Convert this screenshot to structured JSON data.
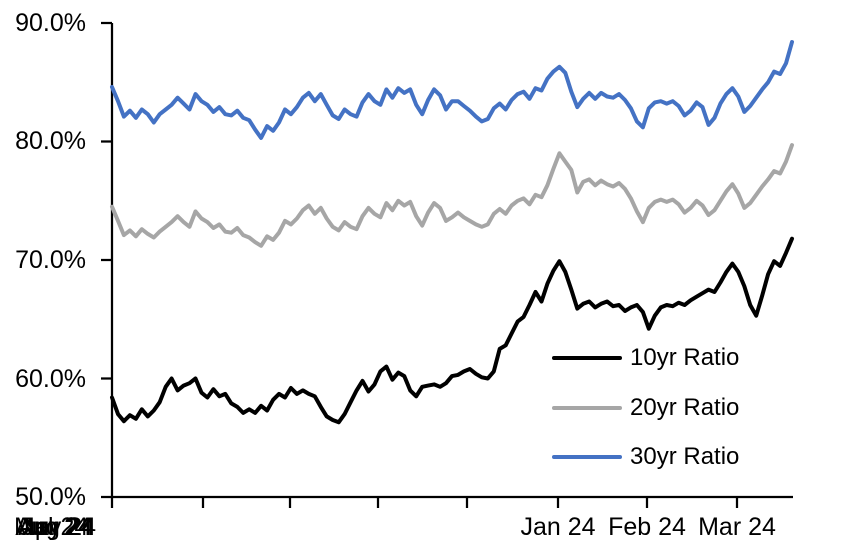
{
  "chart_data": {
    "type": "line",
    "title": "",
    "x_tick_labels": [
      "Jan 24",
      "Feb 24",
      "Mar 24",
      "Apr 24",
      "May 24",
      "Jun 24",
      "Jul 24",
      "Aug 24"
    ],
    "y_tick_labels": [
      "90.0%",
      "80.0%",
      "70.0%",
      "60.0%",
      "50.0%"
    ],
    "ylim": [
      50,
      90
    ],
    "y_unit": "%",
    "grid": false,
    "legend_position": "inside-lower-right",
    "series": [
      {
        "name": "10yr Ratio",
        "color": "#000000",
        "values": [
          58.4,
          57.0,
          56.4,
          56.9,
          56.6,
          57.4,
          56.8,
          57.3,
          58.0,
          59.3,
          60.0,
          59.0,
          59.4,
          59.6,
          60.0,
          58.8,
          58.4,
          59.1,
          58.5,
          58.7,
          57.9,
          57.6,
          57.1,
          57.4,
          57.1,
          57.7,
          57.3,
          58.2,
          58.7,
          58.4,
          59.2,
          58.7,
          59.0,
          58.7,
          58.5,
          57.6,
          56.8,
          56.5,
          56.3,
          57.0,
          58.0,
          59.0,
          59.8,
          58.9,
          59.5,
          60.6,
          61.0,
          59.9,
          60.5,
          60.2,
          59.0,
          58.5,
          59.3,
          59.4,
          59.5,
          59.3,
          59.6,
          60.2,
          60.3,
          60.6,
          60.8,
          60.4,
          60.1,
          60.0,
          60.6,
          62.5,
          62.8,
          63.8,
          64.8,
          65.2,
          66.2,
          67.3,
          66.5,
          68.0,
          69.1,
          69.9,
          69.0,
          67.5,
          65.9,
          66.3,
          66.5,
          66.0,
          66.3,
          66.5,
          66.1,
          66.2,
          65.7,
          66.0,
          66.2,
          65.6,
          64.2,
          65.3,
          66.0,
          66.2,
          66.1,
          66.4,
          66.2,
          66.6,
          66.9,
          67.2,
          67.5,
          67.3,
          68.1,
          69.0,
          69.7,
          69.0,
          67.8,
          66.2,
          65.3,
          67.0,
          68.8,
          69.9,
          69.5,
          70.6,
          71.8
        ]
      },
      {
        "name": "20yr Ratio",
        "color": "#a6a6a6",
        "values": [
          74.5,
          73.3,
          72.1,
          72.5,
          72.0,
          72.6,
          72.2,
          71.9,
          72.4,
          72.8,
          73.2,
          73.7,
          73.2,
          72.8,
          74.1,
          73.5,
          73.2,
          72.7,
          73.0,
          72.4,
          72.3,
          72.7,
          72.1,
          71.9,
          71.5,
          71.2,
          72.0,
          71.7,
          72.3,
          73.3,
          73.0,
          73.5,
          74.2,
          74.6,
          73.9,
          74.4,
          73.5,
          72.8,
          72.5,
          73.2,
          72.8,
          72.6,
          73.7,
          74.4,
          73.9,
          73.6,
          74.8,
          74.2,
          75.0,
          74.6,
          74.9,
          73.7,
          72.9,
          74.0,
          74.8,
          74.4,
          73.3,
          73.6,
          74.0,
          73.6,
          73.3,
          73.0,
          72.8,
          73.0,
          73.9,
          74.3,
          73.9,
          74.6,
          75.0,
          75.2,
          74.7,
          75.5,
          75.3,
          76.3,
          77.7,
          79.0,
          78.3,
          77.6,
          75.7,
          76.6,
          76.8,
          76.3,
          76.7,
          76.4,
          76.2,
          76.5,
          76.0,
          75.2,
          74.1,
          73.2,
          74.4,
          74.9,
          75.1,
          74.9,
          75.1,
          74.7,
          74.0,
          74.4,
          75.0,
          74.6,
          73.8,
          74.2,
          75.0,
          75.8,
          76.4,
          75.6,
          74.4,
          74.8,
          75.5,
          76.2,
          76.8,
          77.5,
          77.3,
          78.3,
          79.7
        ]
      },
      {
        "name": "30yr Ratio",
        "color": "#4472c4",
        "values": [
          84.6,
          83.4,
          82.1,
          82.6,
          82.0,
          82.7,
          82.3,
          81.6,
          82.3,
          82.7,
          83.1,
          83.7,
          83.2,
          82.7,
          84.0,
          83.4,
          83.1,
          82.5,
          82.9,
          82.3,
          82.2,
          82.6,
          82.0,
          81.8,
          81.0,
          80.3,
          81.3,
          80.9,
          81.6,
          82.7,
          82.3,
          82.9,
          83.7,
          84.1,
          83.4,
          84.0,
          83.1,
          82.2,
          81.9,
          82.7,
          82.3,
          82.1,
          83.3,
          84.0,
          83.4,
          83.1,
          84.4,
          83.7,
          84.5,
          84.1,
          84.4,
          83.1,
          82.3,
          83.5,
          84.4,
          83.9,
          82.7,
          83.4,
          83.4,
          83.0,
          82.6,
          82.1,
          81.7,
          81.9,
          82.8,
          83.2,
          82.7,
          83.5,
          84.0,
          84.2,
          83.6,
          84.5,
          84.3,
          85.3,
          85.9,
          86.3,
          85.8,
          84.2,
          82.9,
          83.6,
          84.1,
          83.6,
          84.1,
          83.8,
          83.7,
          84.0,
          83.5,
          82.8,
          81.7,
          81.2,
          82.8,
          83.3,
          83.4,
          83.2,
          83.4,
          83.0,
          82.2,
          82.6,
          83.3,
          82.9,
          81.4,
          82.0,
          83.2,
          84.0,
          84.5,
          83.8,
          82.5,
          83.0,
          83.7,
          84.4,
          85.0,
          85.9,
          85.7,
          86.6,
          88.4
        ]
      }
    ]
  }
}
